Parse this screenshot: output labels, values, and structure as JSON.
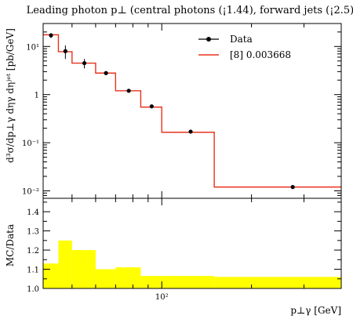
{
  "chart_data": {
    "type": "line",
    "title": "Leading photon p⊥ (central photons (¡1.44), forward jets (¡2.5))",
    "xlabel": "p⊥γ [GeV]",
    "ylabel": "d³σ/dp⊥γ dηγ dηʲᵉᵗ [pb/GeV]",
    "ratio_ylabel": "MC/Data",
    "xscale": "log",
    "yscale": "log",
    "xlim": [
      40,
      400
    ],
    "ylim": [
      0.007,
      30
    ],
    "ratio_ylim": [
      1.0,
      1.47
    ],
    "x_tick_labels": [
      "10²"
    ],
    "y_tick_labels": [
      {
        "value": 10,
        "label": "10¹"
      },
      {
        "value": 1,
        "label": "1"
      },
      {
        "value": 0.1,
        "label": "10⁻¹"
      },
      {
        "value": 0.01,
        "label": "10⁻²"
      }
    ],
    "ratio_tick_labels": [
      "1.0",
      "1.1",
      "1.2",
      "1.3",
      "1.4"
    ],
    "bin_edges": [
      40,
      45,
      50,
      60,
      70,
      85,
      100,
      150,
      400
    ],
    "data": {
      "name": "Data",
      "x": [
        42.5,
        47.5,
        55,
        65,
        77.5,
        92.5,
        125,
        275
      ],
      "y": [
        17,
        8.0,
        4.5,
        2.8,
        1.2,
        0.57,
        0.17,
        0.012
      ],
      "yerr": [
        2.0,
        2.5,
        1.0,
        0.25,
        0.1,
        0.05,
        0.015,
        0.001
      ]
    },
    "model": {
      "name": "[8] 0.003668",
      "color": "#e8331d",
      "values": [
        17.5,
        7.8,
        4.5,
        2.8,
        1.2,
        0.55,
        0.165,
        0.012
      ]
    },
    "ratio": {
      "color": "#ffff00",
      "values": [
        1.13,
        1.25,
        1.2,
        1.1,
        1.11,
        1.065,
        1.065,
        1.06
      ]
    },
    "legend_position": "top-right"
  }
}
